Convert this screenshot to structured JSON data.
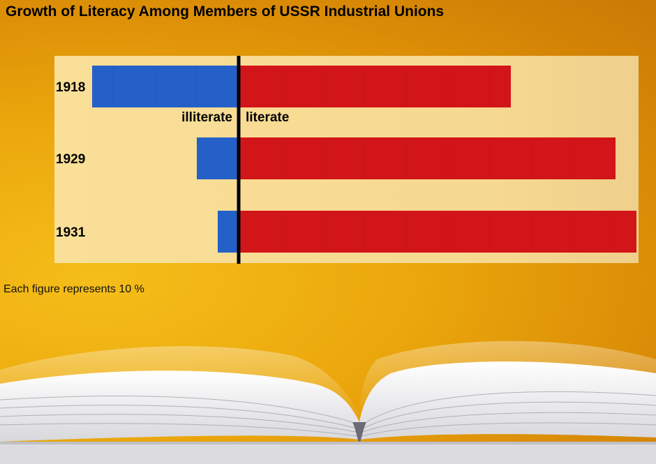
{
  "title": "Growth of Literacy Among Members of USSR Industrial Unions",
  "note": "Each figure represents 10 %",
  "colors": {
    "illiterate": "#2560c8",
    "literate": "#d21519",
    "panel": "#f8dc93",
    "axis": "#000000"
  },
  "chart_data": {
    "type": "bar",
    "orientation": "horizontal-diverging",
    "categories": [
      "1918",
      "1929",
      "1931"
    ],
    "unit": "%",
    "series": [
      {
        "name": "illiterate",
        "values": [
          35,
          10,
          5
        ]
      },
      {
        "name": "literate",
        "values": [
          65,
          90,
          95
        ]
      }
    ],
    "series_labels_shown_on_row": "1918",
    "xlim": [
      -35,
      95
    ]
  }
}
